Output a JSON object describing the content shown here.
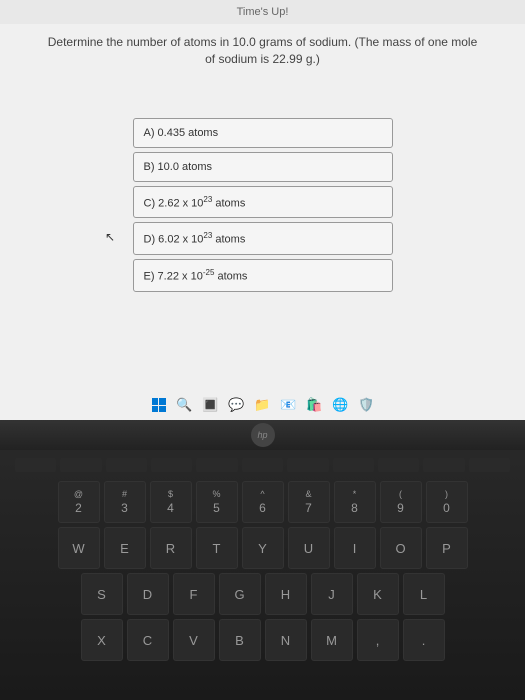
{
  "header": {
    "title": "Time's Up!"
  },
  "question": {
    "line1": "Determine the number of atoms in 10.0 grams of sodium. (The mass of one mole",
    "line2": "of sodium is 22.99 g.)"
  },
  "answers": {
    "a": "A) 0.435 atoms",
    "b": "B) 10.0 atoms",
    "c_pre": "C) 2.62 x 10",
    "c_sup": "23",
    "c_post": " atoms",
    "d_pre": "D) 6.02 x 10",
    "d_sup": "23",
    "d_post": " atoms",
    "e_pre": "E) 7.22 x 10",
    "e_sup": "-25",
    "e_post": " atoms"
  },
  "taskbar": {
    "icons": [
      "search",
      "widgets",
      "chat",
      "explorer",
      "edge",
      "store",
      "security"
    ]
  },
  "keyboard": {
    "row1": [
      {
        "sym": "@",
        "main": "2"
      },
      {
        "sym": "#",
        "main": "3"
      },
      {
        "sym": "$",
        "main": "4"
      },
      {
        "sym": "%",
        "main": "5"
      },
      {
        "sym": "^",
        "main": "6"
      },
      {
        "sym": "&",
        "main": "7"
      },
      {
        "sym": "*",
        "main": "8"
      },
      {
        "sym": "(",
        "main": "9"
      },
      {
        "sym": ")",
        "main": "0"
      }
    ],
    "row2": [
      "W",
      "E",
      "R",
      "T",
      "Y",
      "U",
      "I",
      "O",
      "P"
    ],
    "row3": [
      "S",
      "D",
      "F",
      "G",
      "H",
      "J",
      "K",
      "L"
    ],
    "row4": [
      "X",
      "C",
      "V",
      "B",
      "N",
      "M",
      ",",
      "."
    ]
  },
  "colors": {
    "screen_bg": "#f0f0f0",
    "answer_border": "#999",
    "key_bg": "#2a2a2a",
    "key_text": "#999"
  }
}
